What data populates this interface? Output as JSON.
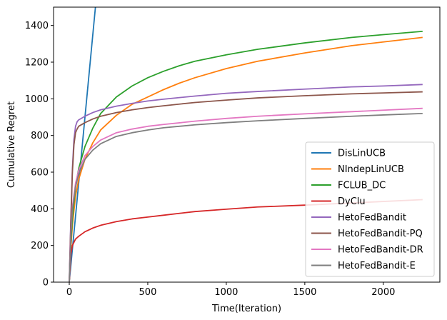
{
  "chart_data": {
    "type": "line",
    "title": "",
    "xlabel": "Time(Iteration)",
    "ylabel": "Cumulative Regret",
    "xlim": [
      -100,
      2360
    ],
    "ylim": [
      0,
      1500
    ],
    "xticks": [
      0,
      500,
      1000,
      1500,
      2000
    ],
    "yticks": [
      0,
      200,
      400,
      600,
      800,
      1000,
      1200,
      1400
    ],
    "grid": false,
    "legend_position": "lower-right",
    "series": [
      {
        "name": "DisLinUCB",
        "color": "#1f77b4",
        "x": [
          0,
          10,
          60,
          120,
          170
        ],
        "y": [
          0,
          90,
          540,
          1080,
          1530
        ]
      },
      {
        "name": "NIndepLinUCB",
        "color": "#ff7f0e",
        "x": [
          0,
          10,
          20,
          40,
          60,
          100,
          150,
          200,
          300,
          400,
          500,
          600,
          700,
          800,
          1000,
          1200,
          1500,
          1800,
          2000,
          2250
        ],
        "y": [
          0,
          180,
          310,
          470,
          560,
          670,
          760,
          830,
          910,
          970,
          1010,
          1050,
          1085,
          1115,
          1165,
          1205,
          1250,
          1290,
          1310,
          1335
        ]
      },
      {
        "name": "FCLUB_DC",
        "color": "#2ca02c",
        "x": [
          0,
          10,
          20,
          40,
          60,
          100,
          150,
          200,
          300,
          400,
          500,
          600,
          700,
          800,
          1000,
          1200,
          1500,
          1800,
          2000,
          2250
        ],
        "y": [
          0,
          210,
          350,
          520,
          620,
          740,
          840,
          920,
          1010,
          1070,
          1115,
          1150,
          1180,
          1205,
          1240,
          1270,
          1305,
          1335,
          1350,
          1368
        ]
      },
      {
        "name": "DyClu",
        "color": "#d62728",
        "x": [
          0,
          10,
          20,
          40,
          60,
          100,
          150,
          200,
          300,
          400,
          500,
          600,
          800,
          1000,
          1200,
          1500,
          1800,
          2000,
          2250
        ],
        "y": [
          0,
          150,
          200,
          235,
          250,
          275,
          295,
          310,
          330,
          345,
          355,
          365,
          385,
          398,
          410,
          420,
          432,
          440,
          450
        ]
      },
      {
        "name": "HetoFedBandit",
        "color": "#9467bd",
        "x": [
          0,
          10,
          20,
          30,
          40,
          50,
          60,
          100,
          150,
          200,
          300,
          400,
          500,
          600,
          800,
          1000,
          1200,
          1500,
          1800,
          2000,
          2250
        ],
        "y": [
          0,
          350,
          620,
          780,
          850,
          875,
          885,
          905,
          925,
          940,
          960,
          975,
          988,
          998,
          1015,
          1030,
          1040,
          1053,
          1065,
          1070,
          1078
        ]
      },
      {
        "name": "HetoFedBandit-PQ",
        "color": "#8c564b",
        "x": [
          0,
          10,
          20,
          30,
          40,
          50,
          60,
          100,
          150,
          200,
          300,
          400,
          500,
          600,
          800,
          1000,
          1200,
          1500,
          1800,
          2000,
          2250
        ],
        "y": [
          0,
          320,
          600,
          750,
          815,
          835,
          850,
          870,
          890,
          905,
          925,
          940,
          952,
          962,
          980,
          993,
          1005,
          1017,
          1027,
          1032,
          1038
        ]
      },
      {
        "name": "HetoFedBandit-DR",
        "color": "#e377c2",
        "x": [
          0,
          10,
          20,
          40,
          60,
          100,
          150,
          200,
          300,
          400,
          500,
          600,
          800,
          1000,
          1200,
          1500,
          1800,
          2000,
          2250
        ],
        "y": [
          0,
          260,
          410,
          540,
          610,
          690,
          740,
          775,
          815,
          835,
          850,
          860,
          878,
          893,
          905,
          918,
          930,
          938,
          948
        ]
      },
      {
        "name": "HetoFedBandit-E",
        "color": "#7f7f7f",
        "x": [
          0,
          10,
          20,
          40,
          60,
          100,
          150,
          200,
          300,
          400,
          500,
          600,
          800,
          1000,
          1200,
          1500,
          1800,
          2000,
          2250
        ],
        "y": [
          0,
          240,
          390,
          520,
          590,
          670,
          720,
          755,
          795,
          815,
          830,
          842,
          858,
          870,
          880,
          893,
          905,
          912,
          920
        ]
      }
    ]
  }
}
